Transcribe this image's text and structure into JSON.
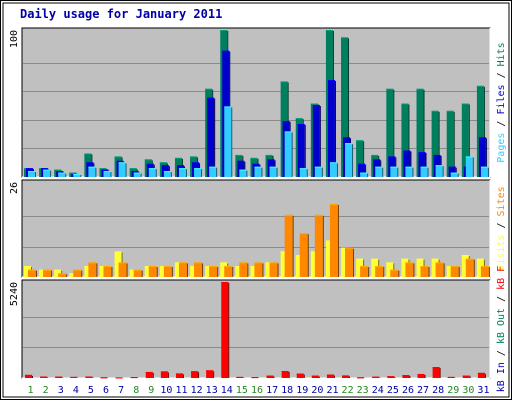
{
  "title": "Daily usage for January 2011",
  "colors": {
    "background": "#c0c0c0",
    "pages": "#33ccff",
    "files": "#0000cc",
    "hits": "#007f5f",
    "visits": "#ffff33",
    "sites": "#ff8800",
    "kbytes": "#ff0000",
    "weekday_label": "#0000aa",
    "weekend_label": "#228822",
    "title": "#0000aa"
  },
  "chart_data": [
    {
      "type": "bar",
      "categories": [
        "1",
        "2",
        "3",
        "4",
        "5",
        "6",
        "7",
        "8",
        "9",
        "10",
        "11",
        "12",
        "13",
        "14",
        "15",
        "16",
        "17",
        "18",
        "19",
        "20",
        "21",
        "22",
        "23",
        "24",
        "25",
        "26",
        "27",
        "28",
        "29",
        "30",
        "31"
      ],
      "weekend_days": [
        "1",
        "2",
        "8",
        "9",
        "15",
        "16",
        "22",
        "23",
        "29",
        "30"
      ],
      "ymax_label": "100",
      "ylim": [
        0,
        100
      ],
      "series": [
        {
          "name": "Hits",
          "values": [
            6,
            6,
            5,
            3,
            16,
            6,
            14,
            6,
            12,
            10,
            13,
            14,
            60,
            100,
            15,
            13,
            15,
            65,
            40,
            50,
            100,
            95,
            25,
            15,
            60,
            50,
            60,
            45,
            45,
            50,
            62
          ]
        },
        {
          "name": "Files",
          "values": [
            6,
            6,
            4,
            2,
            10,
            5,
            11,
            4,
            9,
            8,
            8,
            10,
            54,
            86,
            11,
            9,
            12,
            38,
            36,
            49,
            66,
            27,
            9,
            12,
            14,
            18,
            17,
            15,
            7,
            7,
            27
          ]
        },
        {
          "name": "Pages",
          "values": [
            4,
            5,
            3,
            2,
            7,
            4,
            10,
            3,
            6,
            4,
            6,
            6,
            7,
            48,
            5,
            7,
            7,
            31,
            6,
            7,
            10,
            23,
            3,
            7,
            7,
            7,
            7,
            8,
            3,
            14,
            7
          ]
        }
      ],
      "legend": [
        "Pages",
        "Files",
        "Hits"
      ],
      "legend_position": "right"
    },
    {
      "type": "bar",
      "categories": [
        "1",
        "2",
        "3",
        "4",
        "5",
        "6",
        "7",
        "8",
        "9",
        "10",
        "11",
        "12",
        "13",
        "14",
        "15",
        "16",
        "17",
        "18",
        "19",
        "20",
        "21",
        "22",
        "23",
        "24",
        "25",
        "26",
        "27",
        "28",
        "29",
        "30",
        "31"
      ],
      "ymax_label": "26",
      "ylim": [
        0,
        26
      ],
      "series": [
        {
          "name": "Visits",
          "values": [
            3,
            2,
            2,
            1,
            3,
            3,
            7,
            2,
            3,
            3,
            4,
            3,
            3,
            4,
            3,
            3,
            4,
            7,
            6,
            7,
            10,
            8,
            5,
            5,
            4,
            5,
            5,
            5,
            3,
            6,
            5
          ]
        },
        {
          "name": "Sites",
          "values": [
            2,
            2,
            1,
            2,
            4,
            3,
            4,
            2,
            3,
            3,
            4,
            4,
            3,
            3,
            4,
            4,
            4,
            17,
            12,
            17,
            20,
            8,
            3,
            3,
            2,
            4,
            3,
            4,
            3,
            5,
            3
          ]
        }
      ],
      "legend": [
        "Visits",
        "Sites"
      ],
      "legend_position": "right"
    },
    {
      "type": "bar",
      "categories": [
        "1",
        "2",
        "3",
        "4",
        "5",
        "6",
        "7",
        "8",
        "9",
        "10",
        "11",
        "12",
        "13",
        "14",
        "15",
        "16",
        "17",
        "18",
        "19",
        "20",
        "21",
        "22",
        "23",
        "24",
        "25",
        "26",
        "27",
        "28",
        "29",
        "30",
        "31"
      ],
      "ymax_label": "5240",
      "ylim": [
        0,
        5240
      ],
      "series": [
        {
          "name": "KBytes",
          "values": [
            170,
            80,
            75,
            60,
            80,
            40,
            30,
            50,
            330,
            360,
            250,
            370,
            420,
            5240,
            60,
            50,
            130,
            380,
            240,
            130,
            190,
            140,
            40,
            70,
            100,
            160,
            220,
            600,
            60,
            130,
            280
          ]
        }
      ],
      "legend": [
        "kB In",
        "kB Out",
        "kB F"
      ],
      "legend_position": "right"
    }
  ]
}
